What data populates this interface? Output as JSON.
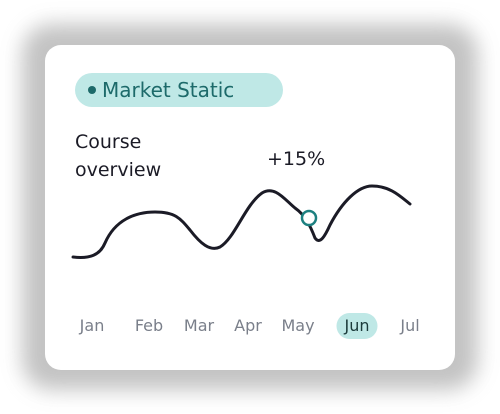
{
  "badge": {
    "label": "Market Static"
  },
  "card": {
    "title_line1": "Course",
    "title_line2": "overview",
    "annotation": "+15%",
    "months": [
      "Jan",
      "Feb",
      "Mar",
      "Apr",
      "May",
      "Jun",
      "Jul"
    ]
  }
}
